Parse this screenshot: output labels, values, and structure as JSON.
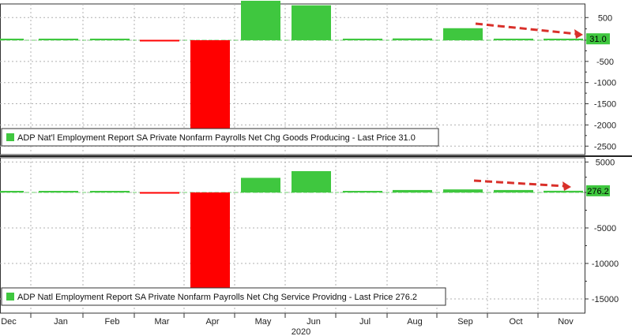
{
  "colors": {
    "positive": "#3fc73f",
    "negative": "#ff0000",
    "arrow": "#d9302a",
    "last_box": "#3fc73f",
    "grid": "#b0b0b0"
  },
  "x_axis": {
    "months": [
      "Dec",
      "Jan",
      "Feb",
      "Mar",
      "Apr",
      "May",
      "Jun",
      "Jul",
      "Aug",
      "Sep",
      "Oct",
      "Nov"
    ],
    "year_label": "2020"
  },
  "chart_data": [
    {
      "type": "bar",
      "legend": "ADP Nat'l Employment Report SA Private Nonfarm Payrolls Net Chg Goods Producing - Last Price 31.0",
      "categories": [
        "Dec",
        "Jan",
        "Feb",
        "Mar",
        "Apr",
        "May",
        "Jun",
        "Jul",
        "Aug",
        "Sep",
        "Oct",
        "Nov"
      ],
      "values": [
        15,
        25,
        10,
        -20,
        -2950,
        870,
        770,
        10,
        40,
        265,
        25,
        31
      ],
      "ylim": [
        -2700,
        800
      ],
      "yticks": [
        500,
        0,
        -500,
        -1000,
        -1500,
        -2000,
        -2500
      ],
      "last_price_label": "31.0",
      "grid": true,
      "legend_position": "bottom-left"
    },
    {
      "type": "bar",
      "legend": "ADP Natl Employment Report SA Private Nonfarm Payrolls Net Chg Service Providng - Last Price 276.2",
      "categories": [
        "Dec",
        "Jan",
        "Feb",
        "Mar",
        "Apr",
        "May",
        "Jun",
        "Jul",
        "Aug",
        "Sep",
        "Oct",
        "Nov"
      ],
      "values": [
        150,
        150,
        80,
        -280,
        -16800,
        2400,
        3500,
        150,
        400,
        500,
        400,
        276.2
      ],
      "ylim": [
        -17000,
        5700
      ],
      "yticks": [
        5000,
        0,
        -5000,
        -10000,
        -15000
      ],
      "last_price_label": "276.2",
      "grid": true,
      "legend_position": "bottom-left"
    }
  ]
}
